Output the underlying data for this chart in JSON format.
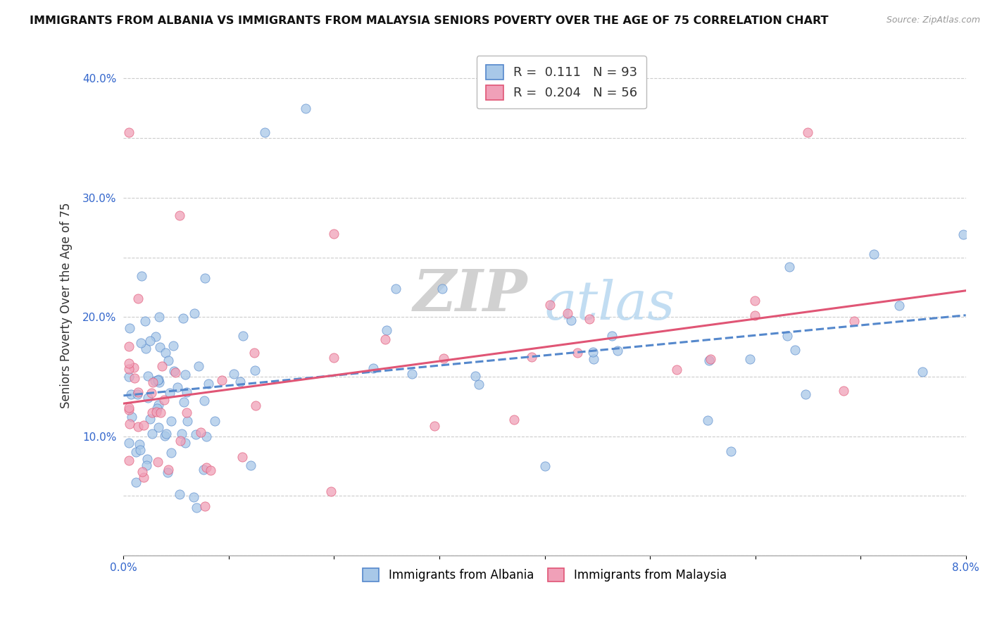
{
  "title": "IMMIGRANTS FROM ALBANIA VS IMMIGRANTS FROM MALAYSIA SENIORS POVERTY OVER THE AGE OF 75 CORRELATION CHART",
  "source": "Source: ZipAtlas.com",
  "ylabel": "Seniors Poverty Over the Age of 75",
  "legend_label_1": "Immigrants from Albania",
  "legend_label_2": "Immigrants from Malaysia",
  "R1": 0.111,
  "N1": 93,
  "R2": 0.204,
  "N2": 56,
  "x_min": 0.0,
  "x_max": 0.08,
  "y_min": 0.0,
  "y_max": 0.42,
  "color_albania": "#a8c8e8",
  "color_malaysia": "#f0a0b8",
  "trendline_albania": "#5588cc",
  "trendline_malaysia": "#e05575",
  "watermark_zip": "ZIP",
  "watermark_atlas": "atlas",
  "background": "#ffffff"
}
